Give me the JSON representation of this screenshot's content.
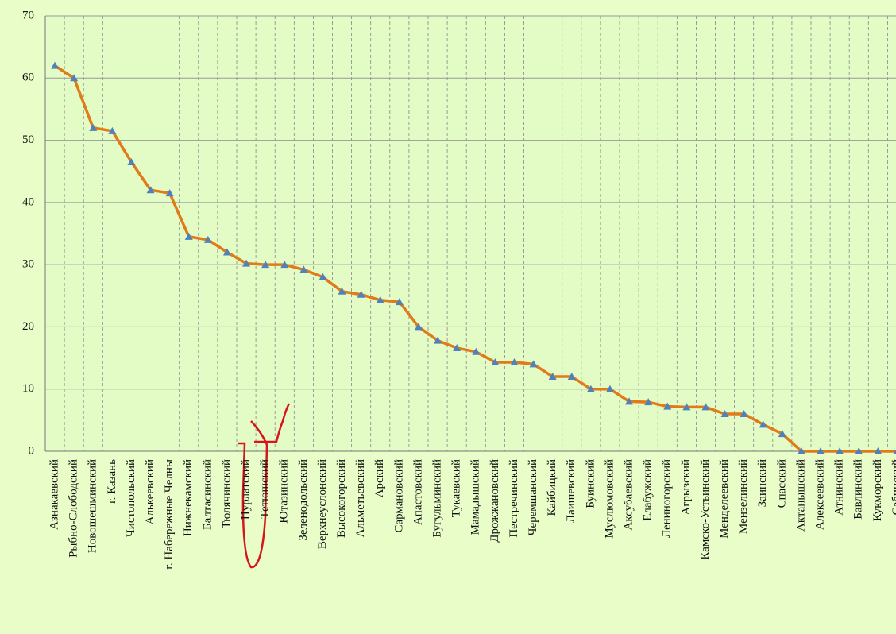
{
  "chart_data": {
    "type": "line",
    "categories": [
      "Азнакаевский",
      "Рыбно-Слободский",
      "Новошешминский",
      "г. Казань",
      "Чистопольский",
      "Алькеевский",
      "г. Набережные Челны",
      "Нижнекамский",
      "Балтасинский",
      "Тюлячинский",
      "Нурлатский",
      "Тетюшский",
      "Ютазинский",
      "Зеленодольский",
      "Верхнеуслонский",
      "Высокогорский",
      "Альметьевский",
      "Арский",
      "Сармановский",
      "Апастовский",
      "Бугульминский",
      "Тукаевский",
      "Мамадышский",
      "Дрожжановский",
      "Пестречинский",
      "Черемшанский",
      "Кайбицкий",
      "Лаишевский",
      "Буинский",
      "Муслюмовский",
      "Аксубаевский",
      "Елабужский",
      "Лениногорский",
      "Агрызский",
      "Камско-Устьинский",
      "Менделеевский",
      "Мензелинский",
      "Заинский",
      "Спасский",
      "Актанышский",
      "Алексеевский",
      "Атнинский",
      "Бавлинский",
      "Кукморский",
      "Сабинский"
    ],
    "series": [
      {
        "name": "",
        "color": "#e07b1a",
        "marker_color": "#4f81bd",
        "values": [
          62,
          60,
          52,
          51.5,
          46.5,
          42,
          41.5,
          34.5,
          34,
          32,
          30.2,
          30,
          30,
          29.2,
          28,
          25.7,
          25.2,
          24.3,
          24,
          20,
          17.8,
          16.6,
          16,
          14.3,
          14.3,
          14,
          12,
          12,
          10,
          10,
          8,
          7.9,
          7.2,
          7.1,
          7.1,
          6,
          6,
          4.3,
          2.8,
          0,
          0,
          0,
          0,
          0,
          0
        ]
      }
    ],
    "ylim": [
      0,
      70
    ],
    "yticks": [
      0,
      10,
      20,
      30,
      40,
      50,
      60,
      70
    ],
    "grid": true
  }
}
